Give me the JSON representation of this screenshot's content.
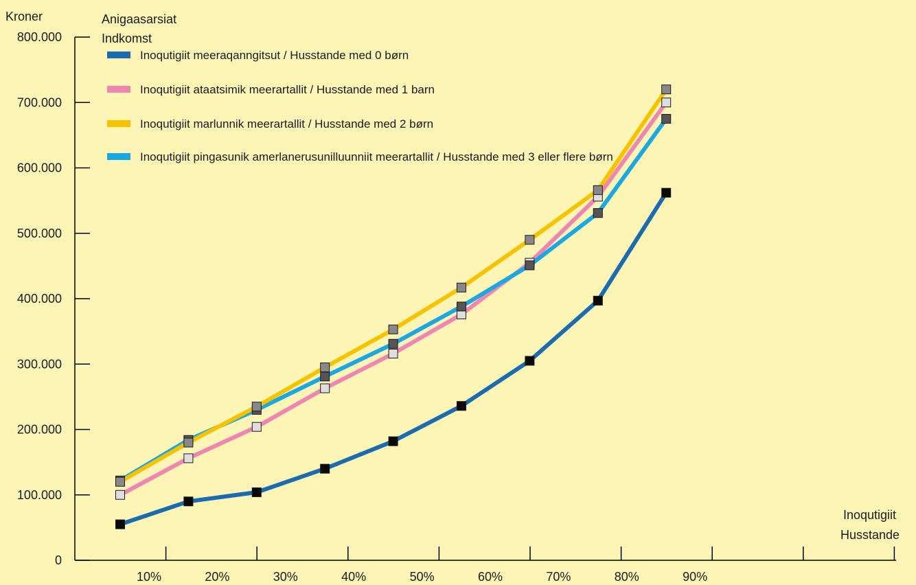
{
  "chart_data": {
    "type": "line",
    "y_unit_label": "Kroner",
    "y_title_lines": [
      "Anigaasarsiat",
      "Indkomst"
    ],
    "x_title_lines": [
      "Inoqutigiit",
      "Husstande"
    ],
    "categories": [
      "10%",
      "20%",
      "30%",
      "40%",
      "50%",
      "60%",
      "70%",
      "80%",
      "90%"
    ],
    "y_ticks": [
      "0",
      "100.000",
      "200.000",
      "300.000",
      "400.000",
      "500.000",
      "600.000",
      "700.000",
      "800.000"
    ],
    "ylim": [
      0,
      800000
    ],
    "series": [
      {
        "name": "Inoqutigiit meeraqanngitsut / Husstande med 0 børn",
        "color": "#1b6bb0",
        "marker_color": "#0a0a0a",
        "values": [
          55000,
          90000,
          104000,
          140000,
          182000,
          236000,
          305000,
          397000,
          562000
        ]
      },
      {
        "name": "Inoqutigiit ataatsimik meerartallit / Husstande med 1 barn",
        "color": "#ef86b1",
        "marker_color": "#dedede",
        "values": [
          100000,
          156000,
          204000,
          263000,
          316000,
          376000,
          455000,
          556000,
          700000
        ]
      },
      {
        "name": "Inoqutigiit marlunnik meerartallit / Husstande med 2 børn",
        "color": "#f7c200",
        "marker_color": "#888888",
        "values": [
          120000,
          180000,
          235000,
          295000,
          353000,
          417000,
          490000,
          566000,
          720000
        ]
      },
      {
        "name": "Inoqutigiit pingasunik amerlanerusunilluunniit meerartallit / Husstande med 3 eller flere børn",
        "color": "#1aa8e2",
        "marker_color": "#555555",
        "values": [
          122000,
          184000,
          230000,
          281000,
          331000,
          388000,
          451000,
          531000,
          675000
        ]
      }
    ],
    "grid": false,
    "legend_position": "top-left"
  }
}
